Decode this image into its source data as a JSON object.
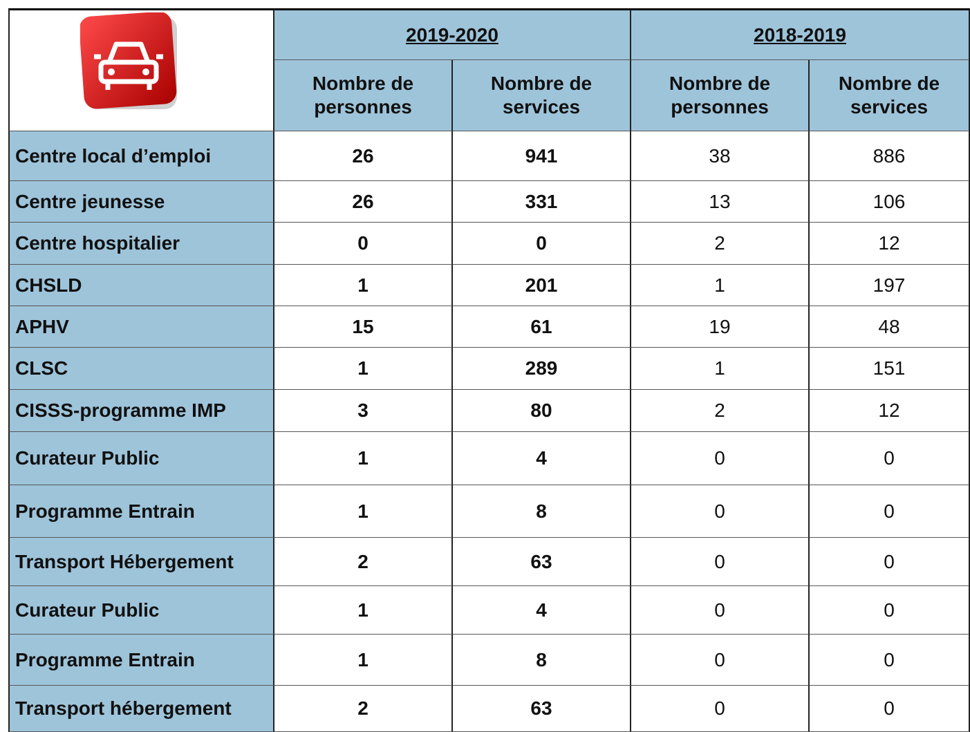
{
  "header": {
    "groups": [
      "2019-2020",
      "2018-2019"
    ],
    "columns": [
      "Nombre de personnes",
      "Nombre de services",
      "Nombre de personnes",
      "Nombre de services"
    ]
  },
  "table": {
    "rows": [
      [
        "Centre local d’emploi",
        26,
        941,
        38,
        886
      ],
      [
        "Centre jeunesse",
        26,
        331,
        13,
        106
      ],
      [
        "Centre hospitalier",
        0,
        0,
        2,
        12
      ],
      [
        "CHSLD",
        1,
        201,
        1,
        197
      ],
      [
        "APHV",
        15,
        61,
        19,
        48
      ],
      [
        "CLSC",
        1,
        289,
        1,
        151
      ],
      [
        "CISSS-programme IMP",
        3,
        80,
        2,
        12
      ],
      [
        "Curateur Public",
        1,
        4,
        0,
        0
      ],
      [
        "Programme Entrain",
        1,
        8,
        0,
        0
      ],
      [
        "Transport Hébergement",
        2,
        63,
        0,
        0
      ],
      [
        "Curateur Public",
        1,
        4,
        0,
        0
      ],
      [
        "Programme Entrain",
        1,
        8,
        0,
        0
      ],
      [
        "Transport hébergement",
        2,
        63,
        0,
        0
      ]
    ]
  }
}
